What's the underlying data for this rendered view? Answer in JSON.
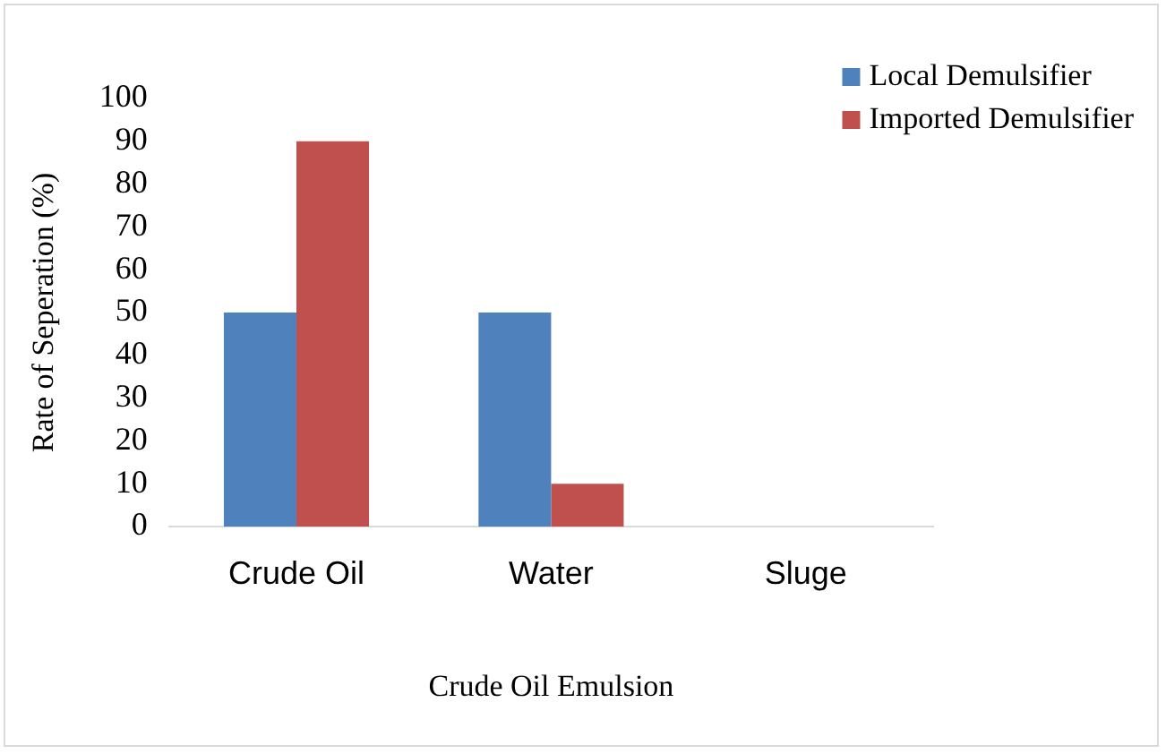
{
  "chart_data": {
    "type": "bar",
    "xlabel": "Crude Oil Emulsion",
    "ylabel": "Rate of Seperation (%)",
    "categories": [
      "Crude Oil",
      "Water",
      "Sluge"
    ],
    "series": [
      {
        "name": "Local Demulsifier",
        "color": "#4f81bd",
        "values": [
          50,
          50,
          0
        ]
      },
      {
        "name": "Imported Demulsifier",
        "color": "#c0504d",
        "values": [
          90,
          10,
          0
        ]
      }
    ],
    "ylim": [
      0,
      100
    ],
    "yticks": [
      0,
      10,
      20,
      30,
      40,
      50,
      60,
      70,
      80,
      90,
      100
    ],
    "grid": false,
    "legend": "top right"
  }
}
